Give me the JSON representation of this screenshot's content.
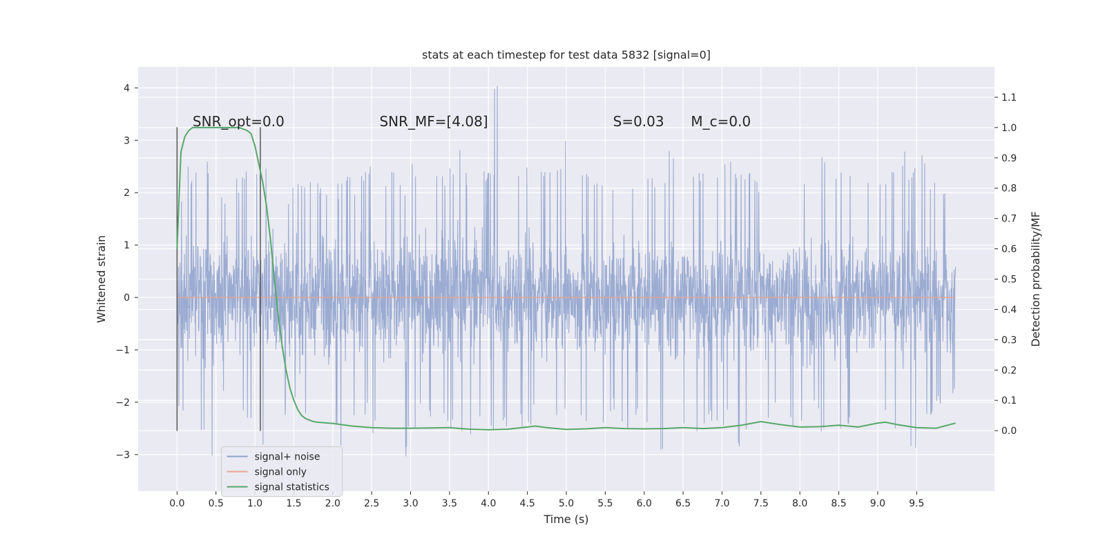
{
  "chart_data": {
    "type": "line",
    "title": "stats at each timestep for test data 5832 [signal=0]",
    "xlabel": "Time (s)",
    "ylabel": "Whitened strain",
    "y2label": "Detection probability/MF",
    "xlim": [
      -0.5,
      10.5
    ],
    "ylim": [
      -3.7,
      4.4
    ],
    "y2lim": [
      -0.2,
      1.2
    ],
    "x_ticks": [
      0.0,
      0.5,
      1.0,
      1.5,
      2.0,
      2.5,
      3.0,
      3.5,
      4.0,
      4.5,
      5.0,
      5.5,
      6.0,
      6.5,
      7.0,
      7.5,
      8.0,
      8.5,
      9.0,
      9.5
    ],
    "x_tick_labels": [
      "0.0",
      "0.5",
      "1.0",
      "1.5",
      "2.0",
      "2.5",
      "3.0",
      "3.5",
      "4.0",
      "4.5",
      "5.0",
      "5.5",
      "6.0",
      "6.5",
      "7.0",
      "7.5",
      "8.0",
      "8.5",
      "9.0",
      "9.5"
    ],
    "y_ticks": [
      -3,
      -2,
      -1,
      0,
      1,
      2,
      3,
      4
    ],
    "y_tick_labels": [
      "−3",
      "−2",
      "−1",
      "0",
      "1",
      "2",
      "3",
      "4"
    ],
    "y2_ticks": [
      0.0,
      0.1,
      0.2,
      0.3,
      0.4,
      0.5,
      0.6,
      0.7,
      0.8,
      0.9,
      1.0,
      1.1
    ],
    "y2_tick_labels": [
      "0.0",
      "0.1",
      "0.2",
      "0.3",
      "0.4",
      "0.5",
      "0.6",
      "0.7",
      "0.8",
      "0.9",
      "1.0",
      "1.1"
    ],
    "grid": true,
    "legend_position": "bottom-left",
    "annotations": [
      {
        "id": "snr-opt",
        "text": "SNR_opt=0.0",
        "x": 0.2,
        "y2": 1.0
      },
      {
        "id": "snr-mf",
        "text": "SNR_MF=[4.08]",
        "x": 2.6,
        "y2": 1.0
      },
      {
        "id": "s-stat",
        "text": "S=0.03",
        "x": 5.6,
        "y2": 1.0
      },
      {
        "id": "mc",
        "text": "M_c=0.0",
        "x": 6.6,
        "y2": 1.0
      }
    ],
    "vertical_markers": [
      {
        "x": 0.0,
        "y_range": [
          -2.55,
          3.25
        ]
      },
      {
        "x": 1.07,
        "y_range": [
          -2.55,
          3.25
        ]
      }
    ],
    "series": [
      {
        "name": "signal+ noise",
        "color": "#8da0cb",
        "x_range": [
          0.0,
          10.0
        ],
        "envelope_top": [
          2.1,
          2.5,
          1.9,
          2.6,
          2.0,
          3.0,
          2.3,
          2.6,
          2.5,
          2.8,
          2.2,
          2.0,
          2.3,
          2.4,
          2.3,
          2.3,
          2.2,
          2.4,
          2.0,
          2.4,
          2.7,
          2.2,
          2.4,
          2.2,
          2.6,
          2.6,
          2.5,
          2.4,
          2.5,
          3.1,
          2.4,
          2.8,
          2.4,
          4.05,
          2.6,
          2.6,
          2.5,
          2.6,
          2.5,
          2.6,
          3.35,
          2.9,
          2.4,
          2.3,
          2.5,
          2.3,
          2.7,
          2.2,
          2.3,
          2.4,
          2.4,
          3.0,
          2.4,
          2.6,
          2.4,
          2.5,
          2.4,
          2.6,
          2.5,
          2.4,
          2.3,
          2.4,
          2.6,
          2.4,
          2.5,
          2.5,
          2.3,
          2.7,
          2.4,
          2.4,
          2.6,
          2.5,
          2.4,
          2.3,
          2.4,
          2.9,
          2.6,
          2.9,
          2.4,
          2.2,
          2.0
        ],
        "envelope_bottom": [
          -2.3,
          -2.8,
          -2.6,
          -3.3,
          -2.0,
          -2.9,
          -2.4,
          -2.6,
          -2.9,
          -2.6,
          -2.1,
          -2.3,
          -2.1,
          -2.4,
          -2.2,
          -2.5,
          -2.6,
          -3.1,
          -2.5,
          -2.3,
          -2.6,
          -2.3,
          -2.1,
          -3.3,
          -2.5,
          -2.3,
          -2.4,
          -2.4,
          -2.5,
          -2.6,
          -2.8,
          -2.4,
          -2.7,
          -2.7,
          -2.6,
          -2.5,
          -2.6,
          -2.4,
          -2.5,
          -2.5,
          -2.4,
          -2.3,
          -2.5,
          -2.5,
          -2.4,
          -2.2,
          -2.6,
          -2.4,
          -2.4,
          -2.3,
          -3.1,
          -2.4,
          -2.7,
          -2.5,
          -2.7,
          -2.4,
          -2.6,
          -2.5,
          -3.1,
          -2.6,
          -2.4,
          -2.5,
          -2.3,
          -2.4,
          -2.5,
          -2.5,
          -2.2,
          -2.6,
          -2.4,
          -2.6,
          -2.5,
          -2.3,
          -2.7,
          -2.4,
          -2.6,
          -2.5,
          -3.3,
          -2.6,
          -2.3,
          -2.1,
          -2.0
        ]
      },
      {
        "name": "signal only",
        "color": "#e5a58e",
        "x": [
          0.0,
          10.0
        ],
        "y": [
          0.0,
          0.0
        ]
      },
      {
        "name": "signal statistics",
        "color": "#55a868",
        "axis": "right",
        "x": [
          0.0,
          0.05,
          0.1,
          0.15,
          0.2,
          0.3,
          0.4,
          0.5,
          0.6,
          0.7,
          0.8,
          0.9,
          0.95,
          1.0,
          1.05,
          1.1,
          1.15,
          1.2,
          1.25,
          1.3,
          1.35,
          1.4,
          1.45,
          1.5,
          1.55,
          1.6,
          1.65,
          1.7,
          1.75,
          1.8,
          1.9,
          2.0,
          2.25,
          2.5,
          2.75,
          3.0,
          3.25,
          3.5,
          3.75,
          4.0,
          4.25,
          4.5,
          4.6,
          4.75,
          5.0,
          5.25,
          5.5,
          5.75,
          6.0,
          6.25,
          6.5,
          6.75,
          7.0,
          7.25,
          7.5,
          7.75,
          8.0,
          8.25,
          8.5,
          8.75,
          9.0,
          9.1,
          9.25,
          9.5,
          9.75,
          10.0
        ],
        "y": [
          0.6,
          0.92,
          0.97,
          0.99,
          1.0,
          1.0,
          1.0,
          1.0,
          1.0,
          1.0,
          1.0,
          0.99,
          0.98,
          0.94,
          0.88,
          0.82,
          0.74,
          0.63,
          0.5,
          0.38,
          0.28,
          0.2,
          0.14,
          0.1,
          0.07,
          0.05,
          0.04,
          0.035,
          0.03,
          0.028,
          0.026,
          0.024,
          0.015,
          0.01,
          0.008,
          0.008,
          0.009,
          0.01,
          0.005,
          0.003,
          0.005,
          0.012,
          0.015,
          0.01,
          0.004,
          0.006,
          0.01,
          0.007,
          0.006,
          0.007,
          0.01,
          0.007,
          0.01,
          0.018,
          0.03,
          0.02,
          0.012,
          0.013,
          0.018,
          0.012,
          0.025,
          0.028,
          0.02,
          0.01,
          0.008,
          0.025
        ]
      }
    ]
  }
}
